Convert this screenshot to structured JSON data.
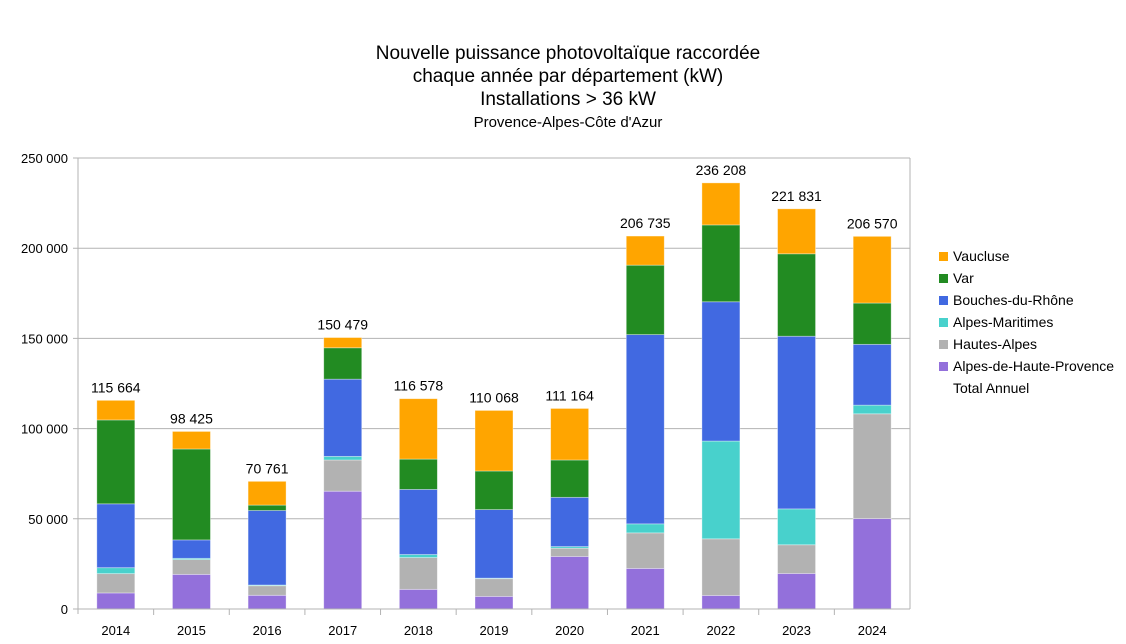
{
  "chart_data": {
    "type": "bar",
    "stacked": true,
    "title": [
      "Nouvelle puissance photovoltaïque raccordée",
      "chaque année par département (kW)",
      "Installations > 36 kW"
    ],
    "subtitle": "Provence-Alpes-Côte d'Azur",
    "xlabel": "",
    "ylabel": "",
    "ylim": [
      0,
      250000
    ],
    "yticks": [
      0,
      50000,
      100000,
      150000,
      200000,
      250000
    ],
    "ytick_labels": [
      "0",
      "50 000",
      "100 000",
      "150 000",
      "200 000",
      "250 000"
    ],
    "grid": true,
    "legend_position": "right",
    "categories": [
      "2014",
      "2015",
      "2016",
      "2017",
      "2018",
      "2019",
      "2020",
      "2021",
      "2022",
      "2023",
      "2024"
    ],
    "series": [
      {
        "name": "Alpes-de-Haute-Provence",
        "color": "#9370DB",
        "values": [
          8900,
          19200,
          7600,
          65300,
          10900,
          7000,
          29100,
          22500,
          7500,
          19700,
          50100
        ]
      },
      {
        "name": "Hautes-Alpes",
        "color": "#B2B2B2",
        "values": [
          10700,
          8200,
          5300,
          17300,
          17600,
          9800,
          4600,
          19700,
          31400,
          15900,
          58100
        ]
      },
      {
        "name": "Alpes-Maritimes",
        "color": "#48D1CC",
        "values": [
          3300,
          700,
          400,
          2000,
          1700,
          300,
          900,
          5000,
          54200,
          19900,
          4800
        ]
      },
      {
        "name": "Bouches-du-Rhône",
        "color": "#4169E1",
        "values": [
          35400,
          10200,
          41300,
          42800,
          36100,
          38000,
          27300,
          104900,
          77200,
          95700,
          33700
        ]
      },
      {
        "name": "Var",
        "color": "#228B22",
        "values": [
          46500,
          50400,
          3000,
          17400,
          16800,
          21400,
          20700,
          38500,
          42600,
          45700,
          22900
        ]
      },
      {
        "name": "Vaucluse",
        "color": "#FFA500",
        "values": [
          10864,
          9725,
          13161,
          5679,
          33478,
          33568,
          28564,
          16135,
          23308,
          24931,
          36970
        ]
      }
    ],
    "total_series": {
      "name": "Total Annuel",
      "values": [
        115664,
        98425,
        70761,
        150479,
        116578,
        110068,
        111164,
        206735,
        236208,
        221831,
        206570
      ]
    },
    "total_labels": [
      "115 664",
      "98 425",
      "70 761",
      "150 479",
      "116 578",
      "110 068",
      "111 164",
      "206 735",
      "236 208",
      "221 831",
      "206 570"
    ],
    "legend": [
      "Vaucluse",
      "Var",
      "Bouches-du-Rhône",
      "Alpes-Maritimes",
      "Hautes-Alpes",
      "Alpes-de-Haute-Provence",
      "Total Annuel"
    ]
  }
}
